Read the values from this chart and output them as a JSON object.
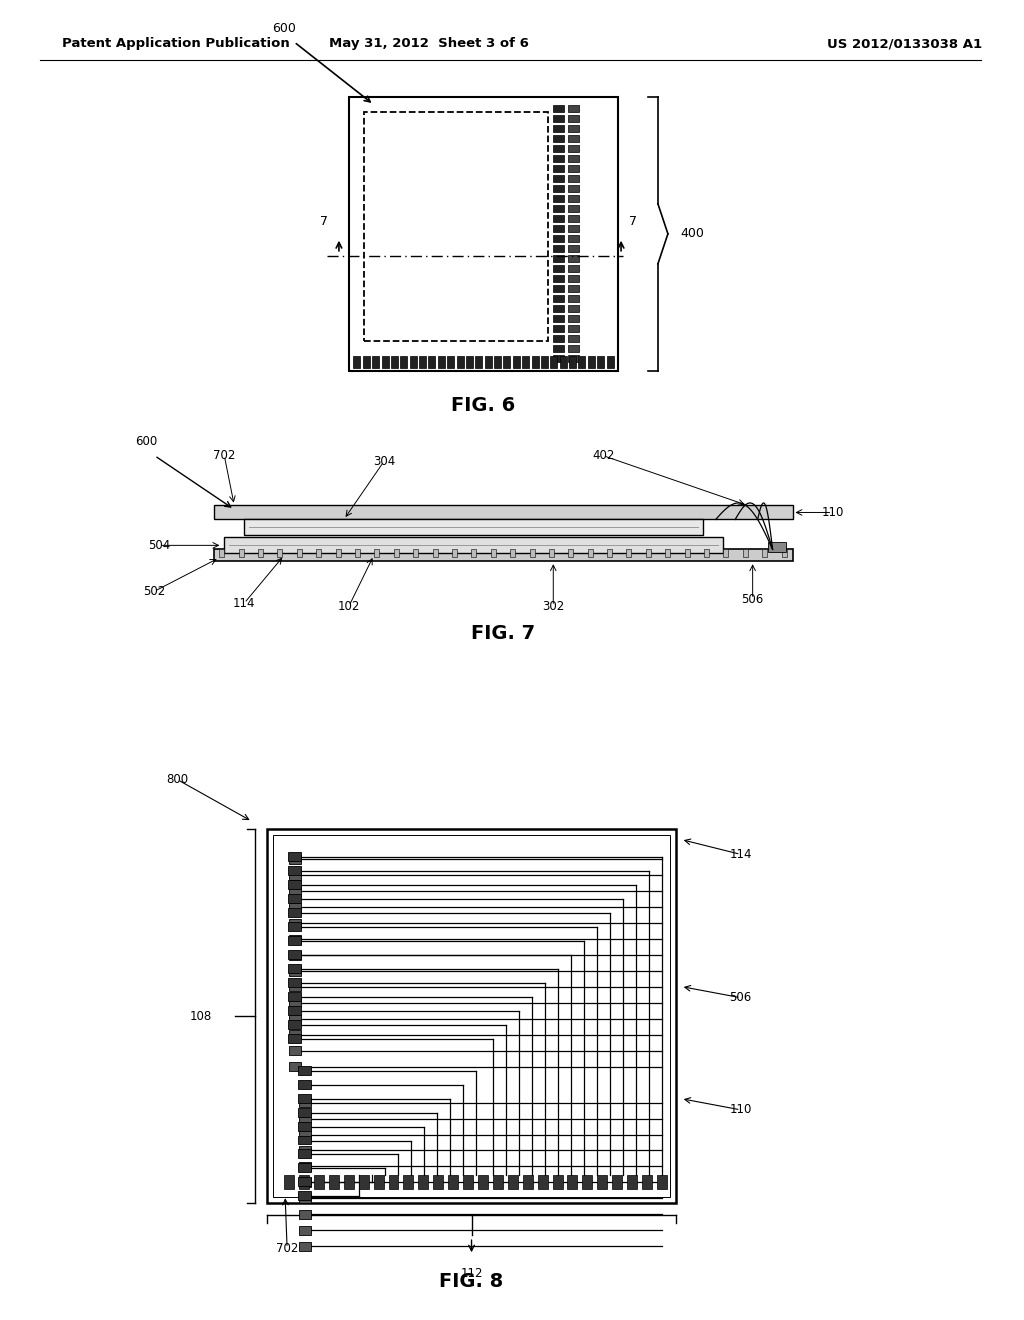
{
  "bg_color": "#ffffff",
  "line_color": "#000000",
  "header": {
    "left": "Patent Application Publication",
    "center": "May 31, 2012  Sheet 3 of 6",
    "right": "US 2012/0133038 A1"
  }
}
